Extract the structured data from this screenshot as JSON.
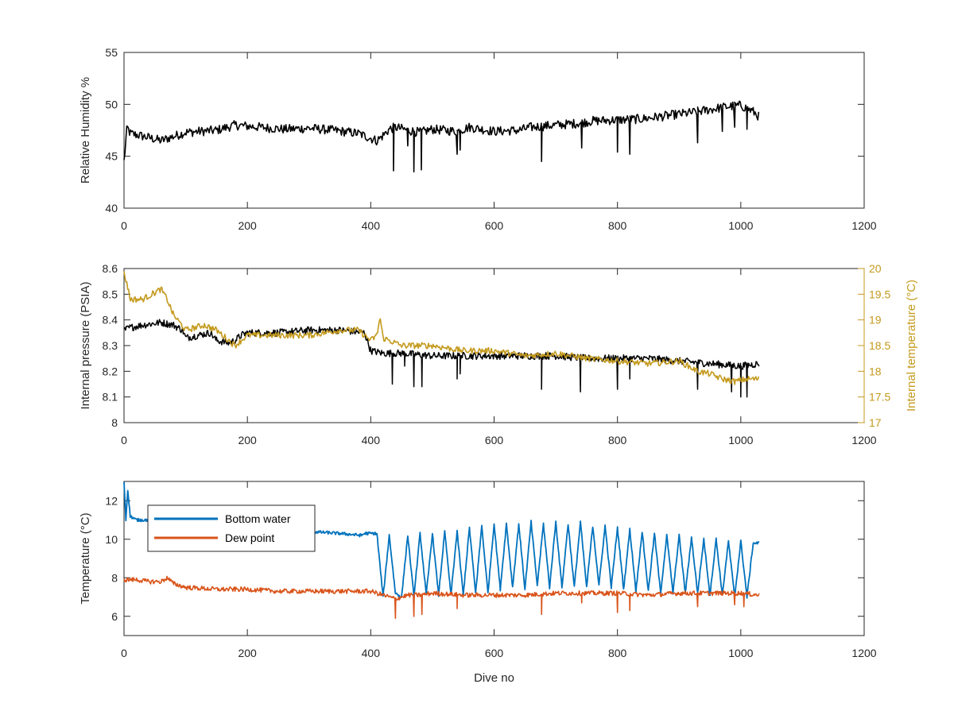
{
  "chart_data": [
    {
      "type": "line",
      "xlabel": "",
      "ylabel": "Relative Humidity %",
      "xlim": [
        0,
        1200
      ],
      "ylim": [
        40,
        55
      ],
      "xticks": [
        "0",
        "200",
        "400",
        "600",
        "800",
        "1000",
        "1200"
      ],
      "yticks": [
        "40",
        "45",
        "50",
        "55"
      ],
      "series": [
        {
          "color": "#000000",
          "x": [
            0,
            5,
            10,
            40,
            60,
            100,
            150,
            180,
            220,
            260,
            300,
            340,
            380,
            410,
            420,
            430,
            440,
            460,
            480,
            500,
            540,
            560,
            600,
            640,
            660,
            700,
            740,
            760,
            800,
            840,
            880,
            920,
            950,
            980,
            1000,
            1020,
            1030
          ],
          "y": [
            44.5,
            47.8,
            47.2,
            46.8,
            46.5,
            47.3,
            47.5,
            48.0,
            47.8,
            47.6,
            47.7,
            47.5,
            47.2,
            46.5,
            47.0,
            47.6,
            47.8,
            47.5,
            47.3,
            47.6,
            47.4,
            47.8,
            47.4,
            47.5,
            47.8,
            48.0,
            48.2,
            48.4,
            48.5,
            48.6,
            48.9,
            49.2,
            49.5,
            49.8,
            49.9,
            49.3,
            48.8
          ]
        }
      ],
      "dips": [
        {
          "x": 437,
          "y": 43.6
        },
        {
          "x": 460,
          "y": 46.0
        },
        {
          "x": 470,
          "y": 43.5
        },
        {
          "x": 482,
          "y": 43.7
        },
        {
          "x": 540,
          "y": 45.2
        },
        {
          "x": 545,
          "y": 45.6
        },
        {
          "x": 677,
          "y": 44.5
        },
        {
          "x": 742,
          "y": 45.8
        },
        {
          "x": 800,
          "y": 45.4
        },
        {
          "x": 820,
          "y": 45.2
        },
        {
          "x": 930,
          "y": 46.3
        },
        {
          "x": 970,
          "y": 47.4
        },
        {
          "x": 990,
          "y": 47.8
        },
        {
          "x": 1010,
          "y": 47.6
        }
      ]
    },
    {
      "type": "line",
      "xlabel": "",
      "ylabel": "Internal pressure (PSIA)",
      "y2label": "Internal temperature (°C)",
      "xlim": [
        0,
        1200
      ],
      "ylim": [
        8,
        8.6
      ],
      "y2lim": [
        17,
        20
      ],
      "xticks": [
        "0",
        "200",
        "400",
        "600",
        "800",
        "1000",
        "1200"
      ],
      "yticks": [
        "8",
        "8.1",
        "8.2",
        "8.3",
        "8.4",
        "8.5",
        "8.6"
      ],
      "y2ticks": [
        "17",
        "17.5",
        "18",
        "18.5",
        "19",
        "19.5",
        "20"
      ],
      "series": [
        {
          "name": "",
          "axis": "left",
          "color": "#000000",
          "x": [
            0,
            10,
            30,
            60,
            80,
            95,
            100,
            140,
            150,
            170,
            180,
            190,
            200,
            250,
            300,
            350,
            390,
            400,
            420,
            450,
            500,
            550,
            600,
            650,
            700,
            750,
            800,
            850,
            900,
            950,
            1000,
            1030
          ],
          "y": [
            8.36,
            8.37,
            8.38,
            8.39,
            8.38,
            8.36,
            8.33,
            8.35,
            8.32,
            8.31,
            8.32,
            8.34,
            8.35,
            8.35,
            8.36,
            8.36,
            8.35,
            8.28,
            8.27,
            8.27,
            8.26,
            8.26,
            8.26,
            8.26,
            8.26,
            8.25,
            8.25,
            8.25,
            8.24,
            8.23,
            8.22,
            8.23
          ],
          "dips": [
            {
              "x": 435,
              "y": 8.15
            },
            {
              "x": 455,
              "y": 8.22
            },
            {
              "x": 470,
              "y": 8.14
            },
            {
              "x": 483,
              "y": 8.14
            },
            {
              "x": 540,
              "y": 8.17
            },
            {
              "x": 545,
              "y": 8.19
            },
            {
              "x": 677,
              "y": 8.13
            },
            {
              "x": 740,
              "y": 8.12
            },
            {
              "x": 800,
              "y": 8.13
            },
            {
              "x": 820,
              "y": 8.17
            },
            {
              "x": 930,
              "y": 8.13
            },
            {
              "x": 985,
              "y": 8.12
            },
            {
              "x": 1000,
              "y": 8.1
            },
            {
              "x": 1010,
              "y": 8.1
            }
          ]
        },
        {
          "name": "",
          "axis": "right",
          "color": "#C49A1E",
          "x": [
            0,
            5,
            10,
            30,
            60,
            70,
            80,
            100,
            130,
            150,
            170,
            180,
            200,
            250,
            300,
            350,
            380,
            400,
            410,
            415,
            420,
            450,
            500,
            550,
            600,
            650,
            700,
            750,
            800,
            850,
            900,
            930,
            950,
            970,
            990,
            1010,
            1030
          ],
          "y": [
            19.9,
            19.7,
            19.4,
            19.4,
            19.6,
            19.4,
            19.1,
            18.8,
            18.9,
            18.8,
            18.6,
            18.5,
            18.7,
            18.7,
            18.7,
            18.8,
            18.8,
            18.6,
            18.7,
            19.05,
            18.65,
            18.5,
            18.5,
            18.4,
            18.4,
            18.3,
            18.35,
            18.25,
            18.2,
            18.15,
            18.2,
            18.0,
            17.95,
            17.85,
            17.8,
            17.85,
            17.85
          ]
        }
      ]
    },
    {
      "type": "line",
      "xlabel": "Dive no",
      "ylabel": "Temperature (°C)",
      "xlim": [
        0,
        1200
      ],
      "ylim": [
        5,
        13
      ],
      "xticks": [
        "0",
        "200",
        "400",
        "600",
        "800",
        "1000",
        "1200"
      ],
      "yticks": [
        "6",
        "8",
        "10",
        "12"
      ],
      "legend": "top-left",
      "series": [
        {
          "name": "Bottom water",
          "color": "#0072BD",
          "x": [
            0,
            3,
            6,
            10,
            20,
            40,
            55,
            60,
            70,
            80,
            100,
            150,
            200,
            250,
            300,
            350,
            385,
            390,
            395,
            400,
            410,
            420,
            430,
            440,
            450,
            460,
            470,
            480,
            490,
            500,
            510,
            520,
            530,
            540,
            550,
            560,
            570,
            580,
            590,
            600,
            610,
            620,
            630,
            640,
            650,
            660,
            670,
            680,
            690,
            700,
            710,
            720,
            730,
            740,
            750,
            760,
            770,
            780,
            790,
            800,
            810,
            820,
            830,
            840,
            850,
            860,
            870,
            880,
            890,
            900,
            910,
            920,
            930,
            940,
            950,
            960,
            970,
            980,
            990,
            1000,
            1010,
            1020,
            1030
          ],
          "y": [
            13.0,
            11.0,
            12.6,
            11.2,
            11.0,
            11.0,
            11.0,
            11.0,
            10.9,
            10.9,
            10.8,
            10.7,
            10.6,
            10.5,
            10.4,
            10.3,
            10.2,
            10.3,
            10.3,
            10.3,
            10.3,
            7.0,
            10.2,
            7.2,
            7.0,
            10.2,
            7.0,
            10.3,
            7.1,
            10.3,
            7.1,
            10.4,
            7.1,
            10.4,
            7.1,
            10.6,
            7.2,
            10.7,
            7.2,
            10.8,
            7.4,
            10.8,
            7.5,
            10.8,
            7.4,
            10.9,
            7.6,
            10.8,
            7.5,
            10.9,
            7.5,
            10.8,
            7.5,
            10.9,
            7.5,
            10.7,
            7.6,
            10.7,
            7.5,
            10.6,
            7.4,
            10.5,
            7.3,
            10.4,
            7.3,
            10.3,
            7.2,
            10.2,
            7.2,
            10.2,
            7.2,
            10.1,
            7.2,
            10.0,
            7.1,
            10.0,
            7.1,
            9.9,
            7.0,
            9.9,
            7.0,
            9.8,
            9.8
          ]
        },
        {
          "name": "Dew point",
          "color": "#D95319",
          "x": [
            0,
            20,
            40,
            60,
            70,
            80,
            100,
            150,
            200,
            250,
            300,
            350,
            400,
            420,
            440,
            460,
            480,
            500,
            550,
            600,
            650,
            700,
            750,
            800,
            850,
            900,
            950,
            1000,
            1030
          ],
          "y": [
            7.9,
            7.9,
            7.8,
            7.8,
            8.0,
            7.7,
            7.5,
            7.4,
            7.4,
            7.3,
            7.3,
            7.3,
            7.3,
            7.1,
            6.9,
            7.1,
            7.1,
            7.2,
            7.1,
            7.1,
            7.1,
            7.2,
            7.2,
            7.2,
            7.1,
            7.2,
            7.2,
            7.2,
            7.1
          ],
          "dips": [
            {
              "x": 440,
              "y": 5.9
            },
            {
              "x": 470,
              "y": 6.0
            },
            {
              "x": 483,
              "y": 6.1
            },
            {
              "x": 540,
              "y": 6.4
            },
            {
              "x": 677,
              "y": 6.1
            },
            {
              "x": 742,
              "y": 6.7
            },
            {
              "x": 800,
              "y": 6.2
            },
            {
              "x": 820,
              "y": 6.3
            },
            {
              "x": 930,
              "y": 6.5
            },
            {
              "x": 990,
              "y": 6.6
            },
            {
              "x": 1005,
              "y": 6.5
            }
          ]
        }
      ]
    }
  ]
}
